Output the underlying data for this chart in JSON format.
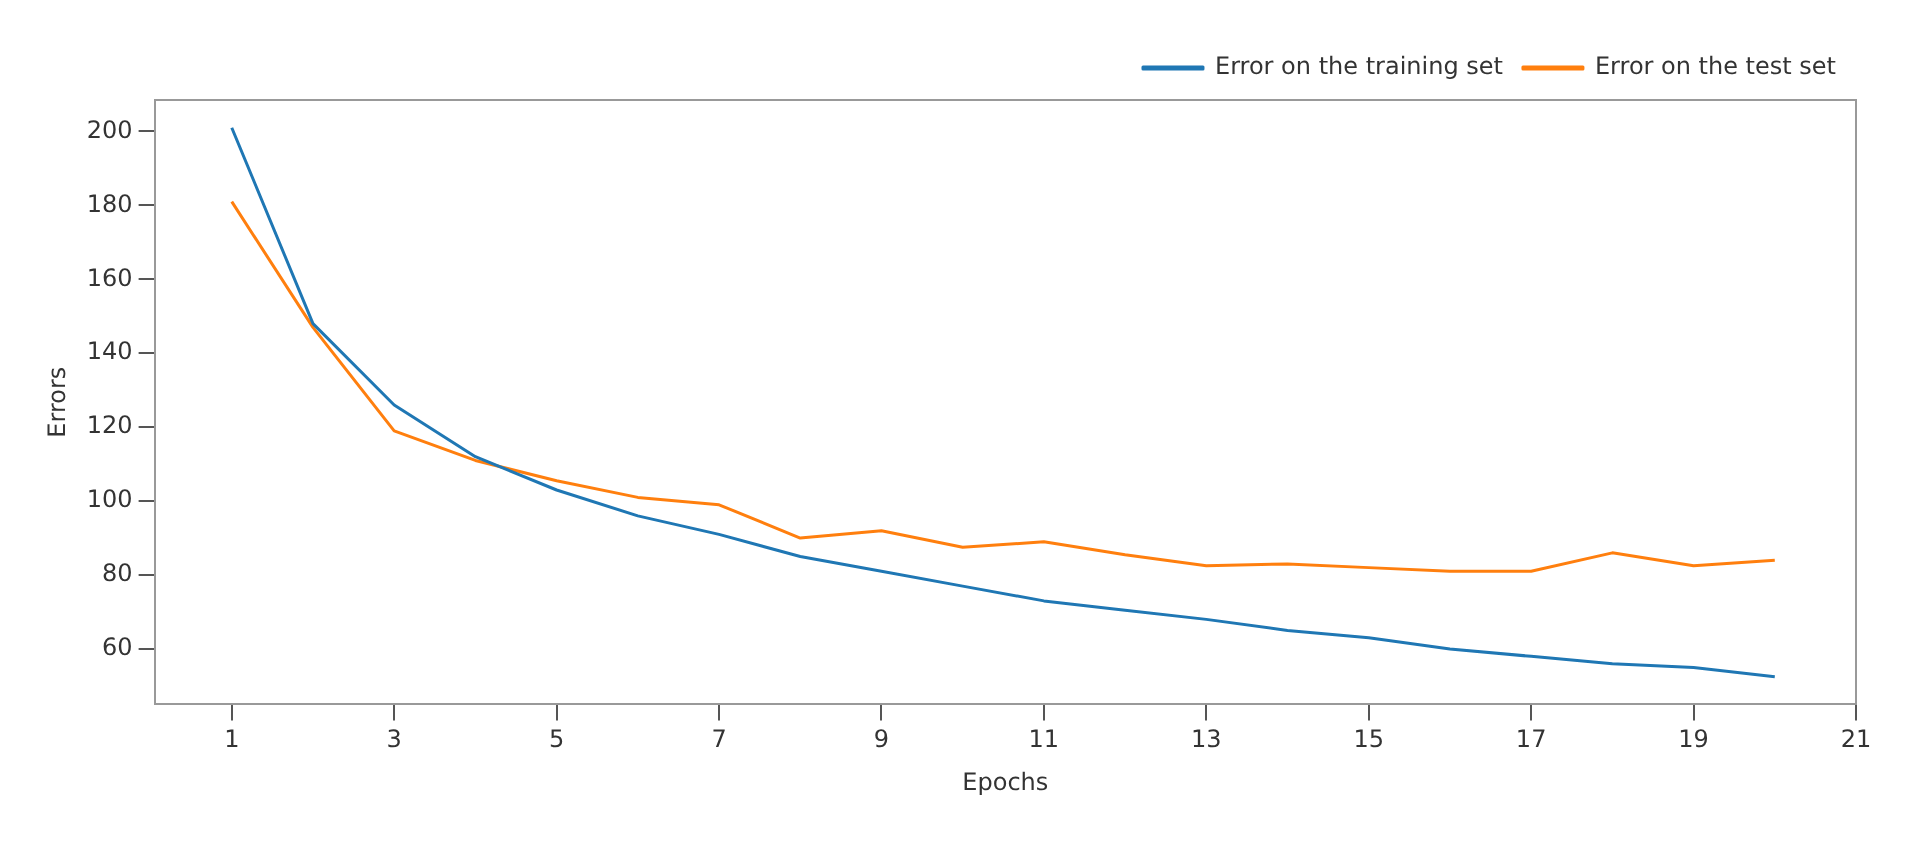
{
  "chart_data": {
    "type": "line",
    "xlabel": "Epochs",
    "ylabel": "Errors",
    "x": [
      1,
      2,
      3,
      4,
      5,
      6,
      7,
      8,
      9,
      10,
      11,
      12,
      13,
      14,
      15,
      16,
      17,
      18,
      19,
      20
    ],
    "series": [
      {
        "name": "Error on the training set",
        "color": "#1f77b4",
        "values": [
          201,
          148,
          126,
          112,
          103,
          96,
          91,
          85,
          81,
          77,
          73,
          70.5,
          68,
          65,
          63,
          60,
          58,
          56,
          55,
          52.5
        ]
      },
      {
        "name": "Error on the test set",
        "color": "#ff7f0e",
        "values": [
          181,
          147,
          119,
          111,
          105.5,
          101,
          99,
          90,
          92,
          87.5,
          89,
          85.5,
          82.5,
          83,
          82,
          81,
          81,
          86,
          82.5,
          84
        ]
      }
    ],
    "xlim": [
      0.05,
      21
    ],
    "xticks": [
      1,
      3,
      5,
      7,
      9,
      11,
      13,
      15,
      17,
      19,
      21
    ],
    "ylim": [
      45,
      208.5
    ],
    "yticks": [
      60,
      80,
      100,
      120,
      140,
      160,
      180,
      200
    ],
    "grid": false,
    "legend": "top right",
    "marker": "none",
    "line_style": "solid"
  }
}
